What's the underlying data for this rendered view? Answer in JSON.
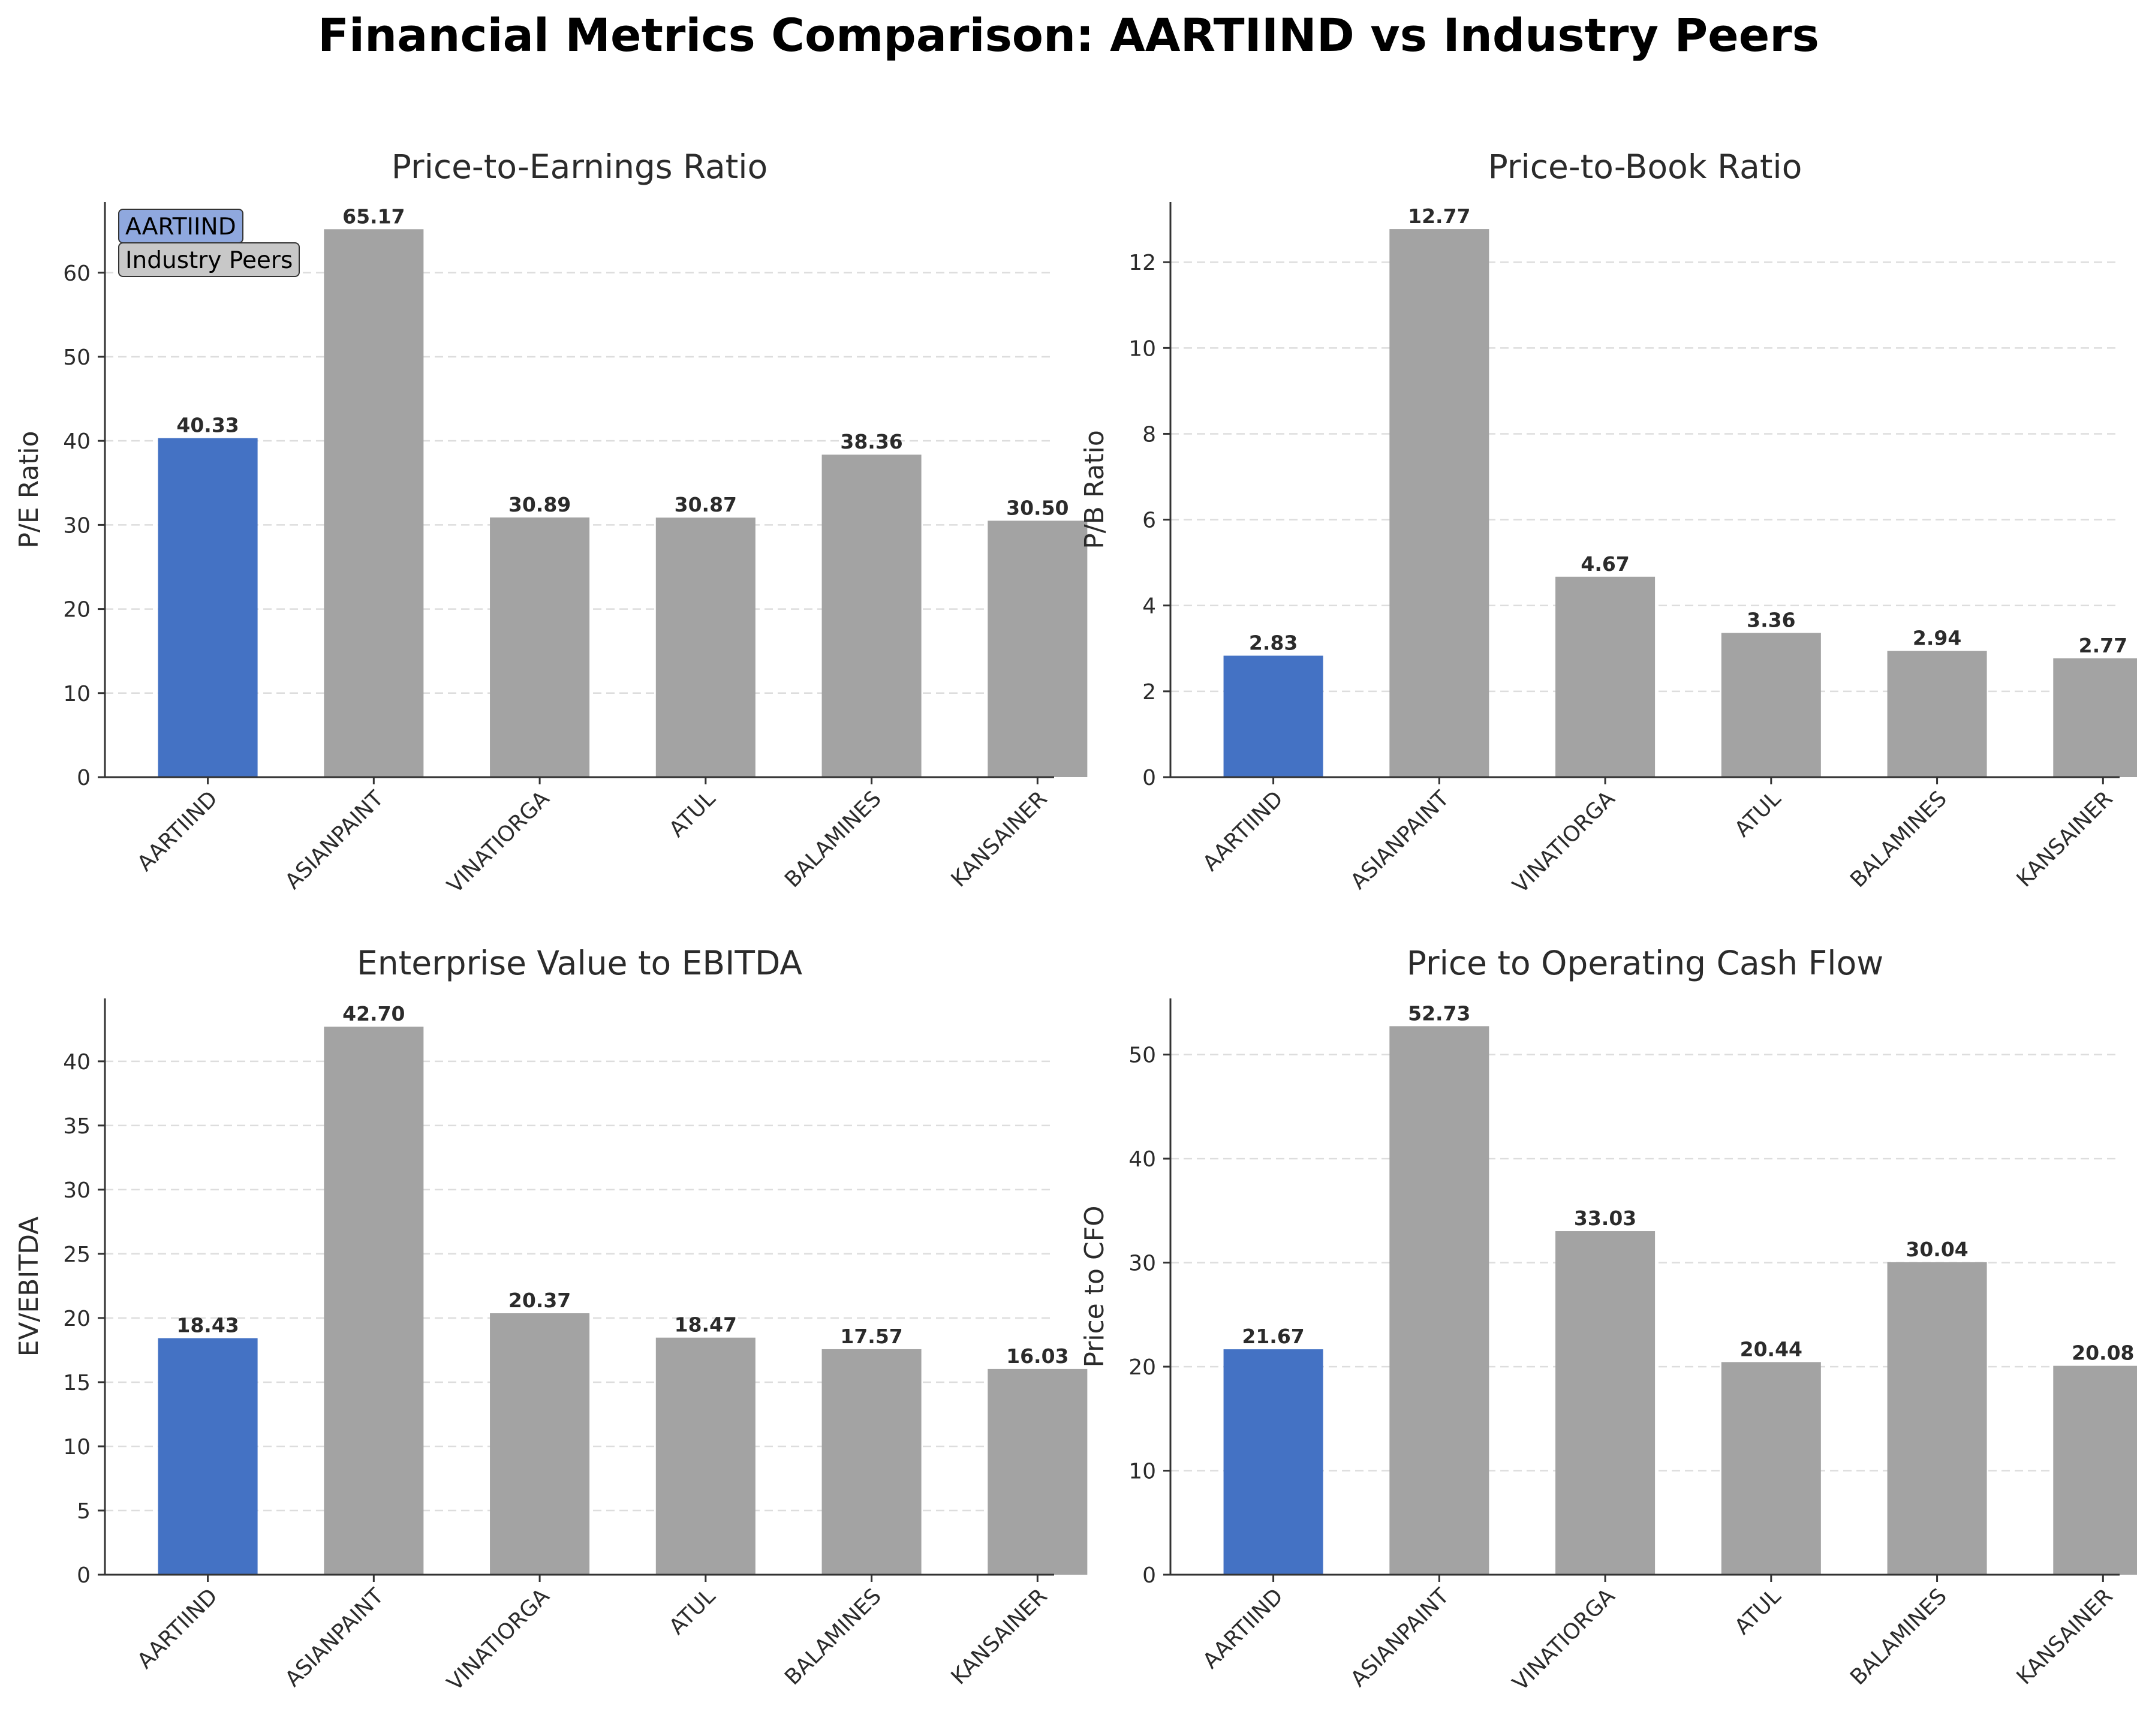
{
  "title": "Financial Metrics Comparison: AARTIIND vs Industry Peers",
  "legend": {
    "items": [
      {
        "label": "AARTIIND",
        "color": "#8fa8de"
      },
      {
        "label": "Industry Peers",
        "color": "#c8c8c8"
      }
    ]
  },
  "colors": {
    "highlight": "#4472c4",
    "peer": "#a3a3a3",
    "label_text": "#2b2b2b",
    "axis": "#333333",
    "grid": "#dddddd"
  },
  "chart_data": [
    {
      "type": "bar",
      "title": "Price-to-Earnings Ratio",
      "xlabel": "",
      "ylabel": "P/E Ratio",
      "categories": [
        "AARTIIND",
        "ASIANPAINT",
        "VINATIORGA",
        "ATUL",
        "BALAMINES",
        "KANSAINER"
      ],
      "values": [
        40.33,
        65.17,
        30.89,
        30.87,
        38.36,
        30.5
      ],
      "value_labels": [
        "40.33",
        "65.17",
        "30.89",
        "30.87",
        "38.36",
        "30.50"
      ],
      "ylim": [
        0,
        68.4
      ],
      "yticks": [
        0,
        10,
        20,
        30,
        40,
        50,
        60
      ],
      "grid": "y-dashed",
      "legend": "top-left"
    },
    {
      "type": "bar",
      "title": "Price-to-Book Ratio",
      "xlabel": "",
      "ylabel": "P/B Ratio",
      "categories": [
        "AARTIIND",
        "ASIANPAINT",
        "VINATIORGA",
        "ATUL",
        "BALAMINES",
        "KANSAINER"
      ],
      "values": [
        2.83,
        12.77,
        4.67,
        3.36,
        2.94,
        2.77
      ],
      "value_labels": [
        "2.83",
        "12.77",
        "4.67",
        "3.36",
        "2.94",
        "2.77"
      ],
      "ylim": [
        0,
        13.4
      ],
      "yticks": [
        0,
        2,
        4,
        6,
        8,
        10,
        12
      ],
      "grid": "y-dashed"
    },
    {
      "type": "bar",
      "title": "Enterprise Value to EBITDA",
      "xlabel": "",
      "ylabel": "EV/EBITDA",
      "categories": [
        "AARTIIND",
        "ASIANPAINT",
        "VINATIORGA",
        "ATUL",
        "BALAMINES",
        "KANSAINER"
      ],
      "values": [
        18.43,
        42.7,
        20.37,
        18.47,
        17.57,
        16.03
      ],
      "value_labels": [
        "18.43",
        "42.70",
        "20.37",
        "18.47",
        "17.57",
        "16.03"
      ],
      "ylim": [
        0,
        44.9
      ],
      "yticks": [
        0,
        5,
        10,
        15,
        20,
        25,
        30,
        35,
        40
      ],
      "grid": "y-dashed"
    },
    {
      "type": "bar",
      "title": "Price to Operating Cash Flow",
      "xlabel": "",
      "ylabel": "Price to CFO",
      "categories": [
        "AARTIIND",
        "ASIANPAINT",
        "VINATIORGA",
        "ATUL",
        "BALAMINES",
        "KANSAINER"
      ],
      "values": [
        21.67,
        52.73,
        33.03,
        20.44,
        30.04,
        20.08
      ],
      "value_labels": [
        "21.67",
        "52.73",
        "33.03",
        "20.44",
        "30.04",
        "20.08"
      ],
      "ylim": [
        0,
        55.4
      ],
      "yticks": [
        0,
        10,
        20,
        30,
        40,
        50
      ],
      "grid": "y-dashed"
    }
  ]
}
